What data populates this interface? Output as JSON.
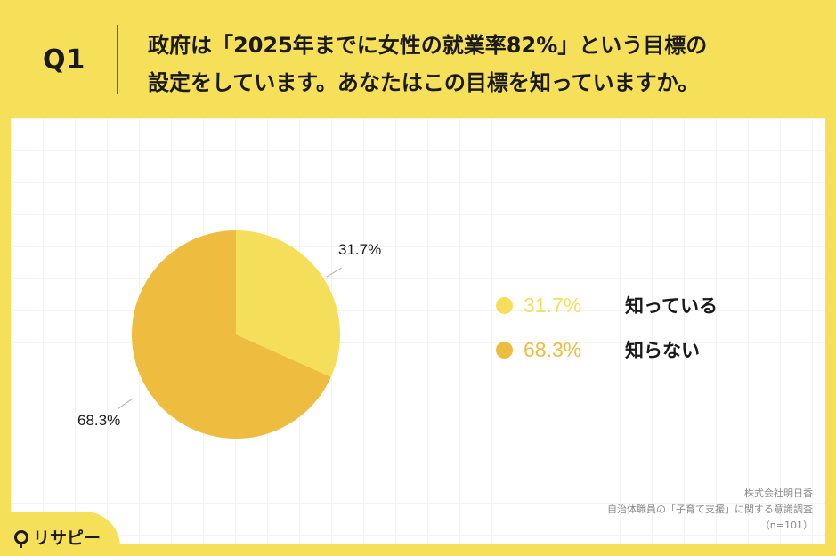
{
  "header": {
    "question_number": "Q1",
    "question_line1": "政府は「2025年までに女性の就業率82%」という目標の",
    "question_line2": "設定をしています。あなたはこの目標を知っていますか。"
  },
  "colors": {
    "background": "#f6e05a",
    "slice_known": "#f5df5a",
    "slice_unknown": "#eebd40"
  },
  "chart_data": {
    "type": "pie",
    "title": "政府は「2025年までに女性の就業率82%」という目標の設定をしています。あなたはこの目標を知っていますか。",
    "categories": [
      "知っている",
      "知らない"
    ],
    "values": [
      31.7,
      68.3
    ],
    "labels": [
      "31.7%",
      "68.3%"
    ],
    "colors": [
      "#f5df5a",
      "#eebd40"
    ],
    "start_angle": "12 o'clock, clockwise",
    "legend_position": "right",
    "n": 101
  },
  "legend": {
    "items": [
      {
        "pct": "31.7%",
        "label": "知っている",
        "color": "#f5df5a"
      },
      {
        "pct": "68.3%",
        "label": "知らない",
        "color": "#eebd40"
      }
    ]
  },
  "footer": {
    "company": "株式会社明日香",
    "survey": "自治体職員の「子育て支援」に関する意識調査",
    "sample": "（n=101）"
  },
  "logo": {
    "text": "リサピー"
  }
}
